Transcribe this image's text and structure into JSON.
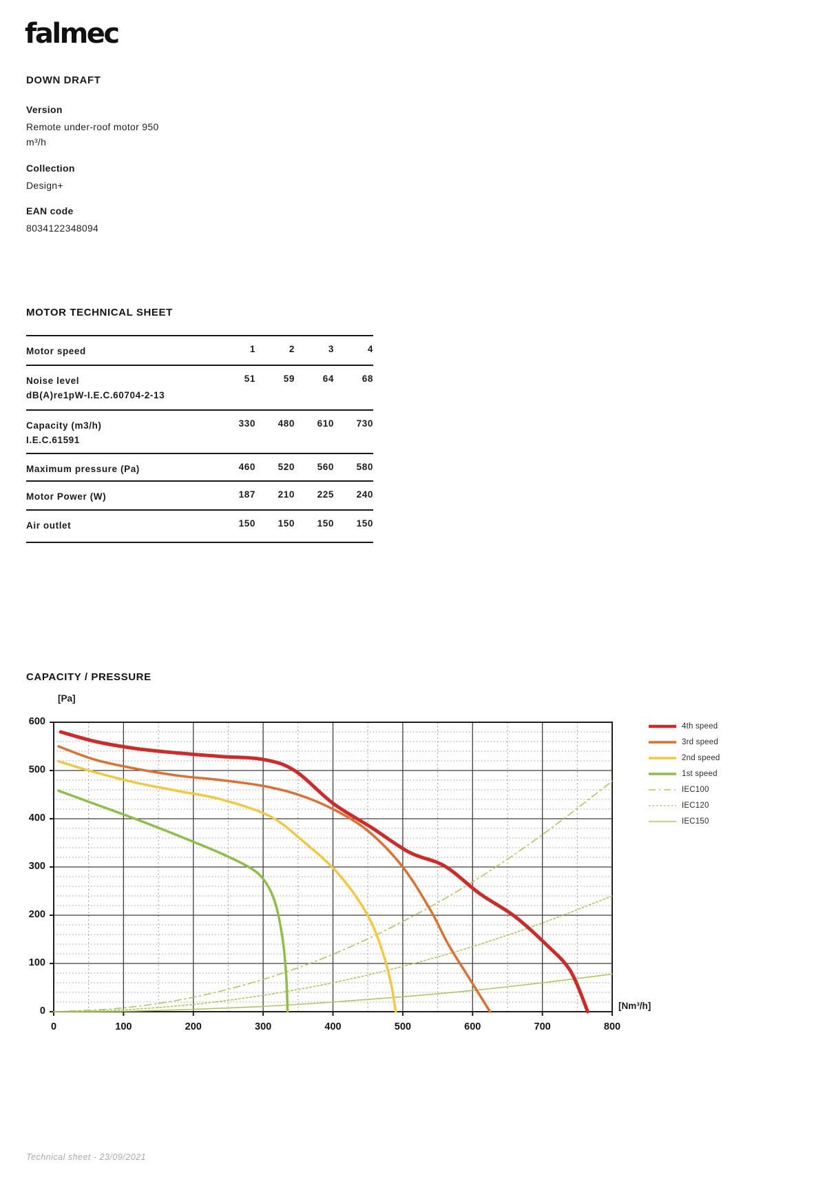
{
  "page": {
    "brand": "falmec",
    "product_title": "DOWN DRAFT",
    "footer": "Technical sheet - 23/09/2021"
  },
  "info": {
    "version_label": "Version",
    "version_value": "Remote under-roof motor 950 m³/h",
    "collection_label": "Collection",
    "collection_value": "Design+",
    "ean_label": "EAN code",
    "ean_value": "8034122348094"
  },
  "motor_table": {
    "title": "MOTOR TECHNICAL SHEET",
    "header": {
      "label": "Motor speed",
      "values": [
        "1",
        "2",
        "3",
        "4"
      ]
    },
    "rows": [
      {
        "label": "Noise level",
        "sublabel": "dB(A)re1pW-I.E.C.60704-2-13",
        "values": [
          "51",
          "59",
          "64",
          "68"
        ]
      },
      {
        "label": "Capacity (m3/h)",
        "sublabel": "I.E.C.61591",
        "values": [
          "330",
          "480",
          "610",
          "730"
        ]
      },
      {
        "label": "Maximum pressure (Pa)",
        "sublabel": "",
        "values": [
          "460",
          "520",
          "560",
          "580"
        ]
      },
      {
        "label": "Motor Power (W)",
        "sublabel": "",
        "values": [
          "187",
          "210",
          "225",
          "240"
        ]
      },
      {
        "label": "Air outlet",
        "sublabel": "",
        "values": [
          "150",
          "150",
          "150",
          "150"
        ]
      }
    ]
  },
  "chart": {
    "title": "CAPACITY / PRESSURE",
    "y_unit": "[Pa]",
    "x_unit": "[Nm³/h]"
  },
  "colors": {
    "speed4": "#cf2a27",
    "speed3": "#e06f2f",
    "speed2": "#f0c93f",
    "speed1": "#8fbe45",
    "iec": "#abc75d",
    "grid_major": "#3d3d3d",
    "grid_minor": "#9a9aa0",
    "plot_border": "#1f1f1f"
  },
  "chart_data": {
    "type": "line",
    "title": "CAPACITY / PRESSURE",
    "xlabel": "[Nm³/h]",
    "ylabel": "[Pa]",
    "xlim": [
      0,
      800
    ],
    "ylim": [
      0,
      600
    ],
    "x_ticks": [
      0,
      100,
      200,
      300,
      400,
      500,
      600,
      700,
      800
    ],
    "y_ticks": [
      0,
      100,
      200,
      300,
      400,
      500,
      600
    ],
    "grid": {
      "on": true,
      "x_minor_step": 50,
      "y_minor_step": 20
    },
    "legend_position": "right",
    "series": [
      {
        "name": "4th speed",
        "color": "#cf2a27",
        "width": 5,
        "dash": "solid",
        "points": [
          [
            10,
            580
          ],
          [
            60,
            560
          ],
          [
            120,
            545
          ],
          [
            180,
            536
          ],
          [
            240,
            529
          ],
          [
            300,
            523
          ],
          [
            345,
            500
          ],
          [
            400,
            432
          ],
          [
            455,
            382
          ],
          [
            510,
            330
          ],
          [
            560,
            302
          ],
          [
            610,
            245
          ],
          [
            660,
            198
          ],
          [
            705,
            140
          ],
          [
            740,
            85
          ],
          [
            765,
            0
          ]
        ]
      },
      {
        "name": "3rd speed",
        "color": "#e06f2f",
        "width": 3.5,
        "dash": "solid",
        "points": [
          [
            7,
            550
          ],
          [
            60,
            522
          ],
          [
            120,
            503
          ],
          [
            180,
            489
          ],
          [
            240,
            480
          ],
          [
            300,
            468
          ],
          [
            350,
            450
          ],
          [
            400,
            420
          ],
          [
            450,
            375
          ],
          [
            500,
            300
          ],
          [
            540,
            210
          ],
          [
            565,
            140
          ],
          [
            595,
            70
          ],
          [
            625,
            0
          ]
        ]
      },
      {
        "name": "2nd speed",
        "color": "#f0c93f",
        "width": 3.5,
        "dash": "solid",
        "points": [
          [
            7,
            519
          ],
          [
            60,
            496
          ],
          [
            120,
            474
          ],
          [
            180,
            457
          ],
          [
            240,
            440
          ],
          [
            310,
            405
          ],
          [
            360,
            350
          ],
          [
            400,
            298
          ],
          [
            430,
            245
          ],
          [
            455,
            185
          ],
          [
            472,
            120
          ],
          [
            483,
            60
          ],
          [
            490,
            0
          ]
        ]
      },
      {
        "name": "1st speed",
        "color": "#8fbe45",
        "width": 3.5,
        "dash": "solid",
        "points": [
          [
            7,
            458
          ],
          [
            60,
            430
          ],
          [
            120,
            398
          ],
          [
            180,
            364
          ],
          [
            240,
            328
          ],
          [
            285,
            295
          ],
          [
            305,
            265
          ],
          [
            318,
            222
          ],
          [
            328,
            150
          ],
          [
            333,
            75
          ],
          [
            335,
            0
          ]
        ]
      },
      {
        "name": "IEC100",
        "color": "#abc75d",
        "width": 1.6,
        "dash": "dashdot",
        "points": [
          [
            0,
            0
          ],
          [
            100,
            8
          ],
          [
            200,
            30
          ],
          [
            300,
            67
          ],
          [
            400,
            119
          ],
          [
            500,
            187
          ],
          [
            600,
            269
          ],
          [
            700,
            367
          ],
          [
            800,
            478
          ]
        ]
      },
      {
        "name": "IEC120",
        "color": "#abc75d",
        "width": 1.6,
        "dash": "dot",
        "points": [
          [
            0,
            0
          ],
          [
            100,
            4
          ],
          [
            200,
            15
          ],
          [
            300,
            34
          ],
          [
            400,
            60
          ],
          [
            500,
            94
          ],
          [
            600,
            135
          ],
          [
            700,
            184
          ],
          [
            800,
            240
          ]
        ]
      },
      {
        "name": "IEC150",
        "color": "#abc75d",
        "width": 1.6,
        "dash": "solid",
        "points": [
          [
            0,
            0
          ],
          [
            100,
            1
          ],
          [
            200,
            5
          ],
          [
            300,
            11
          ],
          [
            400,
            20
          ],
          [
            500,
            31
          ],
          [
            600,
            44
          ],
          [
            700,
            60
          ],
          [
            800,
            78
          ]
        ]
      }
    ]
  }
}
